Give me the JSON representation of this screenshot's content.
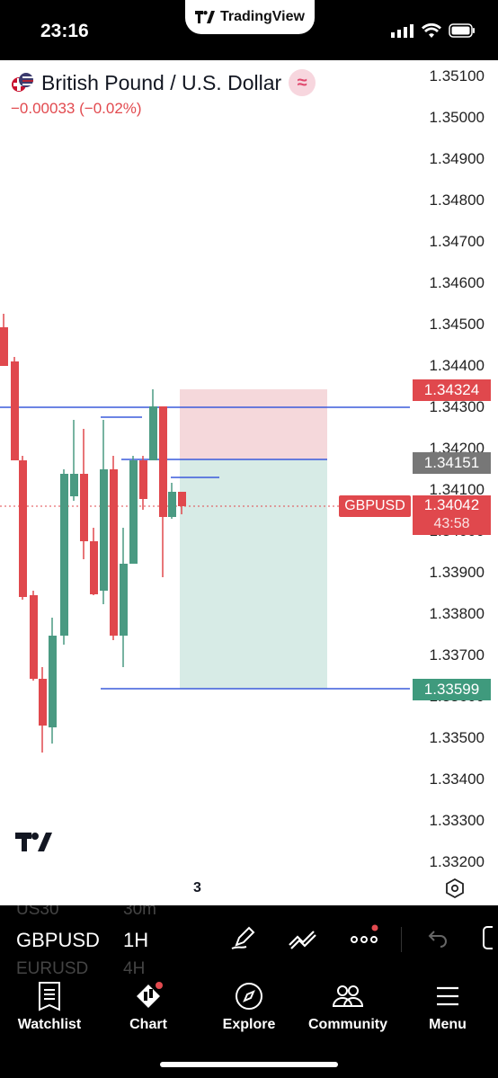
{
  "status": {
    "time": "23:16",
    "pill_brand": "TradingView"
  },
  "header": {
    "title": "British Pound / U.S. Dollar",
    "change": "−0.00033 (−0.02%)",
    "wave_glyph": "≈"
  },
  "price_axis": [
    "1.35100",
    "1.35000",
    "1.34900",
    "1.34800",
    "1.34700",
    "1.34600",
    "1.34500",
    "1.34400",
    "1.34300",
    "1.34200",
    "1.34100",
    "1.34000",
    "1.33900",
    "1.33800",
    "1.33700",
    "1.33600",
    "1.33500",
    "1.33400",
    "1.33300",
    "1.33200"
  ],
  "tags": {
    "stop": "1.34324",
    "entry": "1.34151",
    "last": "1.34042",
    "countdown": "43:58",
    "symbol": "GBPUSD",
    "target": "1.33599"
  },
  "colors": {
    "up": "#4a9a82",
    "down": "#e0484d",
    "line": "#3b5bdb",
    "stop_zone": "#f5d8db",
    "target_zone": "#d7ebe6",
    "entry_tag": "#777777",
    "target_tag": "#3f9a7d"
  },
  "page_number": "3",
  "toolbar": {
    "symbol": "GBPUSD",
    "interval": "1H",
    "ghost_symbol_above": "US30",
    "ghost_interval_above": "30m",
    "ghost_symbol_below": "EURUSD",
    "ghost_interval_below": "4H"
  },
  "nav": [
    {
      "label": "Watchlist",
      "icon": "watchlist-icon"
    },
    {
      "label": "Chart",
      "icon": "chart-icon"
    },
    {
      "label": "Explore",
      "icon": "compass-icon"
    },
    {
      "label": "Community",
      "icon": "community-icon"
    },
    {
      "label": "Menu",
      "icon": "menu-icon"
    }
  ]
}
